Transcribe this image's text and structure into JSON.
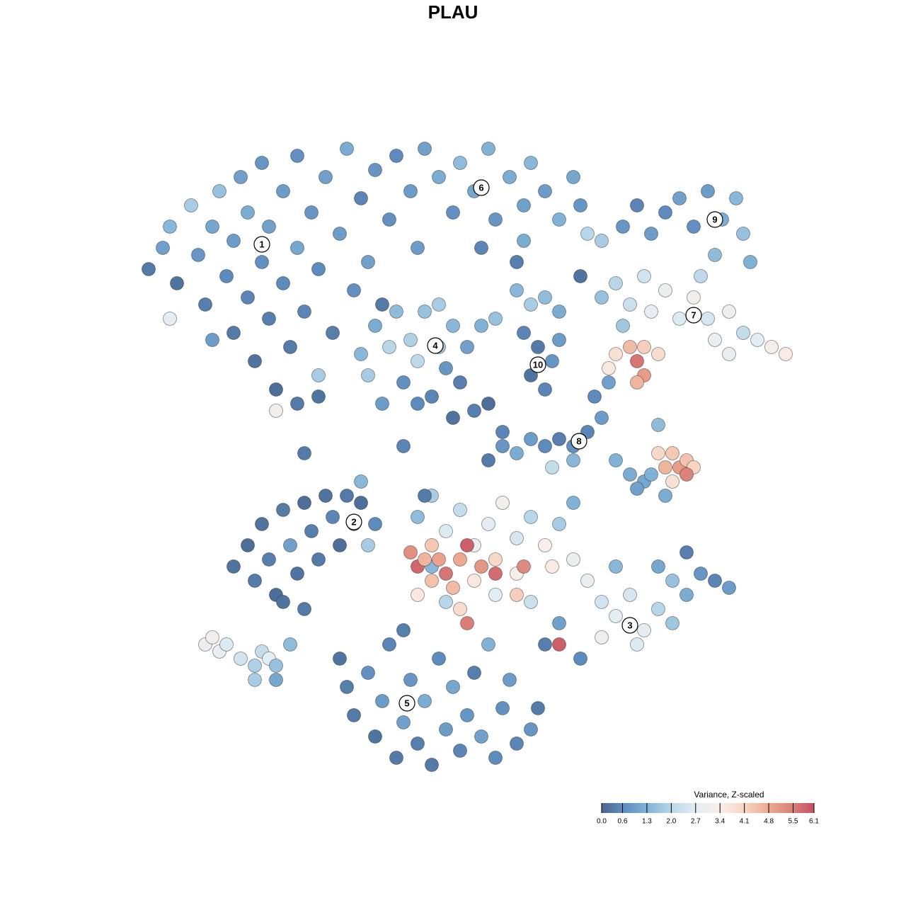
{
  "chart_data": {
    "type": "scatter",
    "title": "PLAU",
    "x": [
      6,
      8,
      9,
      10,
      12,
      13,
      14,
      15,
      16,
      17,
      18,
      18,
      19,
      20,
      20,
      21,
      22,
      22,
      23,
      23,
      24,
      25,
      25,
      26,
      27,
      27,
      28,
      29,
      30,
      30,
      31,
      32,
      33,
      34,
      35,
      36,
      37,
      38,
      39,
      40,
      9,
      24,
      27,
      15,
      41,
      43,
      45,
      47,
      49,
      50,
      52,
      54,
      55,
      57,
      59,
      60,
      62,
      64,
      66,
      67,
      53,
      58,
      73,
      75,
      77,
      79,
      81,
      83,
      85,
      87,
      89,
      90,
      91,
      86,
      70,
      68,
      70,
      72,
      74,
      76,
      77,
      79,
      81,
      83,
      85,
      86,
      88,
      90,
      92,
      94,
      96,
      84,
      73,
      88,
      72,
      74,
      75,
      76,
      76,
      78,
      75,
      71,
      36,
      37,
      38,
      39,
      40,
      41,
      42,
      43,
      44,
      45,
      46,
      47,
      48,
      49,
      50,
      51,
      44,
      47,
      58,
      60,
      62,
      64,
      59,
      61,
      63,
      60,
      62,
      64,
      55,
      53,
      54,
      56,
      58,
      60,
      62,
      64,
      66,
      68,
      70,
      69,
      71,
      72,
      74,
      76,
      78,
      66,
      63,
      77,
      75,
      79,
      78,
      79,
      80,
      81,
      82,
      83,
      80,
      82,
      18,
      20,
      21,
      22,
      23,
      24,
      25,
      26,
      27,
      28,
      29,
      30,
      31,
      32,
      33,
      34,
      35,
      36,
      37,
      25,
      28,
      38,
      44,
      46,
      48,
      50,
      52,
      54,
      56,
      58,
      60,
      62,
      64,
      66,
      68,
      70,
      72,
      74,
      76,
      78,
      80,
      82,
      84,
      86,
      80,
      75,
      70,
      60,
      58,
      55,
      52,
      48,
      46,
      64,
      67,
      62,
      63,
      72,
      78,
      88,
      82,
      66,
      43,
      44,
      45,
      46,
      47,
      48,
      50,
      51,
      53,
      55,
      46,
      49,
      50,
      51,
      55,
      59,
      64,
      58,
      44,
      33,
      34,
      35,
      37,
      38,
      39,
      40,
      41,
      42,
      43,
      44,
      45,
      46,
      47,
      48,
      49,
      50,
      51,
      52,
      53,
      55,
      56,
      58,
      60,
      61,
      42,
      54,
      57,
      14,
      15,
      16,
      17,
      19,
      21,
      22,
      23,
      24,
      21,
      26,
      24,
      30,
      28,
      36,
      42,
      45,
      49,
      54,
      56,
      52,
      67,
      59,
      44
    ],
    "y": [
      77,
      80,
      83,
      75,
      86,
      79,
      72,
      83,
      88,
      76,
      68,
      81,
      90,
      73,
      85,
      64,
      78,
      92,
      70,
      83,
      60,
      88,
      75,
      66,
      80,
      93,
      71,
      85,
      62,
      77,
      90,
      68,
      82,
      94,
      74,
      87,
      78,
      91,
      72,
      84,
      70,
      57,
      58,
      67,
      93,
      88,
      94,
      90,
      85,
      92,
      88,
      94,
      84,
      90,
      86,
      92,
      88,
      84,
      90,
      86,
      80,
      78,
      83,
      86,
      82,
      85,
      87,
      83,
      88,
      84,
      87,
      82,
      78,
      79,
      81,
      82,
      73,
      75,
      72,
      76,
      71,
      74,
      70,
      73,
      70,
      67,
      71,
      68,
      67,
      66,
      65,
      76,
      69,
      65,
      65,
      66,
      64,
      66,
      62,
      65,
      61,
      63,
      65,
      62,
      69,
      58,
      66,
      71,
      61,
      67,
      64,
      71,
      59,
      66,
      63,
      69,
      61,
      66,
      58,
      72,
      74,
      72,
      73,
      71,
      68,
      66,
      64,
      62,
      60,
      67,
      70,
      69,
      50,
      52,
      51,
      53,
      52,
      53,
      52,
      54,
      56,
      59,
      61,
      50,
      48,
      47,
      55,
      50,
      49,
      48,
      46,
      45,
      51,
      49,
      51,
      49,
      50,
      49,
      47,
      48,
      35,
      38,
      33,
      41,
      36,
      31,
      43,
      38,
      34,
      44,
      40,
      36,
      45,
      42,
      38,
      45,
      41,
      44,
      38,
      30,
      29,
      41,
      42,
      45,
      40,
      43,
      38,
      41,
      44,
      39,
      42,
      38,
      41,
      36,
      33,
      30,
      28,
      31,
      26,
      29,
      27,
      31,
      34,
      33,
      33,
      24,
      25,
      30,
      34,
      31,
      33,
      30,
      35,
      27,
      22,
      24,
      35,
      35,
      35,
      32,
      37,
      44,
      37,
      35,
      36,
      33,
      36,
      34,
      36,
      38,
      35,
      34,
      38,
      32,
      29,
      27,
      36,
      35,
      24,
      31,
      31,
      22,
      18,
      14,
      20,
      11,
      16,
      24,
      8,
      13,
      19,
      10,
      16,
      7,
      22,
      12,
      18,
      9,
      14,
      20,
      11,
      8,
      15,
      10,
      12,
      15,
      26,
      24,
      19,
      24,
      25,
      23,
      24,
      22,
      21,
      23,
      22,
      21,
      19,
      24,
      19,
      59,
      51,
      47,
      52,
      45,
      56,
      58,
      54,
      57,
      76,
      81,
      80
    ],
    "values": [
      0.3,
      1.0,
      1.4,
      0.2,
      1.8,
      0.8,
      0.4,
      1.1,
      1.6,
      0.6,
      0.3,
      0.9,
      1.0,
      0.5,
      1.2,
      0.2,
      0.7,
      0.8,
      0.4,
      1.0,
      0.1,
      0.9,
      0.6,
      0.3,
      1.1,
      0.7,
      0.5,
      0.8,
      1.8,
      0.6,
      1.0,
      0.4,
      0.9,
      1.2,
      0.7,
      0.5,
      1.0,
      0.8,
      0.3,
      0.7,
      2.8,
      3.2,
      0.3,
      0.9,
      0.6,
      0.9,
      1.0,
      1.2,
      0.7,
      1.5,
      1.1,
      1.3,
      0.8,
      1.2,
      1.0,
      1.4,
      0.9,
      1.3,
      1.1,
      0.8,
      0.5,
      0.4,
      0.8,
      0.5,
      0.9,
      0.6,
      1.0,
      0.7,
      0.9,
      1.2,
      1.4,
      1.6,
      1.3,
      1.5,
      1.8,
      2.0,
      1.6,
      2.0,
      2.3,
      2.4,
      2.8,
      3.0,
      2.6,
      3.2,
      2.5,
      2.9,
      3.1,
      2.2,
      2.7,
      3.3,
      3.5,
      2.1,
      1.7,
      3.0,
      3.8,
      4.5,
      5.6,
      4.2,
      5.0,
      3.9,
      4.6,
      3.6,
      1.4,
      1.8,
      1.2,
      0.9,
      2.0,
      1.5,
      0.7,
      1.9,
      2.1,
      1.6,
      0.5,
      1.7,
      0.8,
      1.4,
      0.4,
      1.0,
      0.6,
      1.8,
      1.4,
      1.8,
      1.5,
      1.2,
      0.5,
      0.3,
      0.8,
      0.2,
      0.5,
      0.9,
      1.6,
      1.3,
      0.3,
      0.8,
      1.2,
      0.9,
      0.6,
      0.4,
      0.7,
      0.5,
      0.9,
      0.6,
      1.0,
      1.3,
      1.2,
      1.1,
      1.5,
      1.4,
      2.2,
      1.3,
      1.0,
      1.2,
      4.0,
      4.6,
      4.3,
      5.0,
      4.4,
      4.1,
      3.8,
      5.4,
      0.2,
      0.1,
      0.3,
      0.2,
      0.4,
      0.1,
      0.3,
      1.0,
      0.2,
      0.1,
      0.4,
      0.3,
      0.2,
      0.5,
      0.1,
      0.3,
      0.2,
      0.1,
      1.8,
      0.2,
      0.3,
      0.6,
      1.5,
      1.8,
      2.6,
      2.2,
      3.0,
      2.8,
      3.2,
      2.5,
      2.0,
      3.4,
      1.8,
      3.0,
      2.9,
      2.4,
      2.7,
      2.5,
      2.8,
      2.0,
      1.7,
      1.2,
      0.8,
      0.5,
      1.6,
      2.6,
      3.1,
      2.3,
      3.3,
      2.7,
      3.6,
      2.0,
      1.4,
      1.0,
      0.6,
      0.4,
      3.5,
      1.4,
      1.1,
      0.9,
      0.4,
      1.3,
      5.2,
      5.8,
      4.6,
      4.4,
      4.9,
      5.6,
      4.8,
      5.9,
      5.1,
      5.7,
      4.3,
      4.5,
      3.9,
      5.5,
      4.0,
      5.3,
      5.9,
      4.2,
      3.6,
      0.2,
      0.4,
      0.3,
      0.7,
      0.2,
      0.9,
      0.5,
      0.3,
      1.0,
      0.8,
      0.4,
      1.2,
      0.3,
      0.6,
      0.9,
      1.1,
      0.5,
      0.8,
      0.4,
      1.0,
      0.6,
      0.7,
      0.5,
      0.8,
      0.3,
      0.4,
      1.3,
      0.9,
      3.0,
      3.2,
      2.9,
      2.6,
      2.4,
      1.9,
      2.2,
      2.7,
      1.6,
      1.8,
      1.5,
      1.1,
      0.2,
      0.3,
      1.4,
      0.5,
      0.3,
      0.2,
      0.1,
      0.5,
      0.4,
      0.2,
      1.2,
      0.9
    ],
    "xlim": [
      0,
      100
    ],
    "ylim": [
      0,
      100
    ],
    "cluster_labels": {
      "labels": [
        "1",
        "2",
        "3",
        "4",
        "5",
        "6",
        "7",
        "8",
        "9",
        "10"
      ],
      "x": [
        22,
        35,
        74,
        46.5,
        42.5,
        53,
        83,
        66.8,
        86,
        61
      ],
      "y": [
        80.5,
        41.3,
        26.7,
        66.2,
        15.7,
        88.5,
        70.5,
        52.7,
        84,
        63.5
      ]
    },
    "colorbar": {
      "title": "Variance, Z-scaled",
      "clim": [
        0,
        6.1
      ],
      "ticks": [
        {
          "value": 0,
          "label": "0.0"
        },
        0.6,
        1.3,
        {
          "value": 2,
          "label": "2.0"
        },
        2.7,
        3.4,
        4.1,
        4.8,
        5.5,
        6.1
      ],
      "colors": [
        "#4a6890",
        "#5d8bbd",
        "#80b2d6",
        "#b8d6e8",
        "#e2edf4",
        "#f8efea",
        "#f8d5c3",
        "#eda88f",
        "#d97e78",
        "#c64f5f"
      ]
    }
  }
}
